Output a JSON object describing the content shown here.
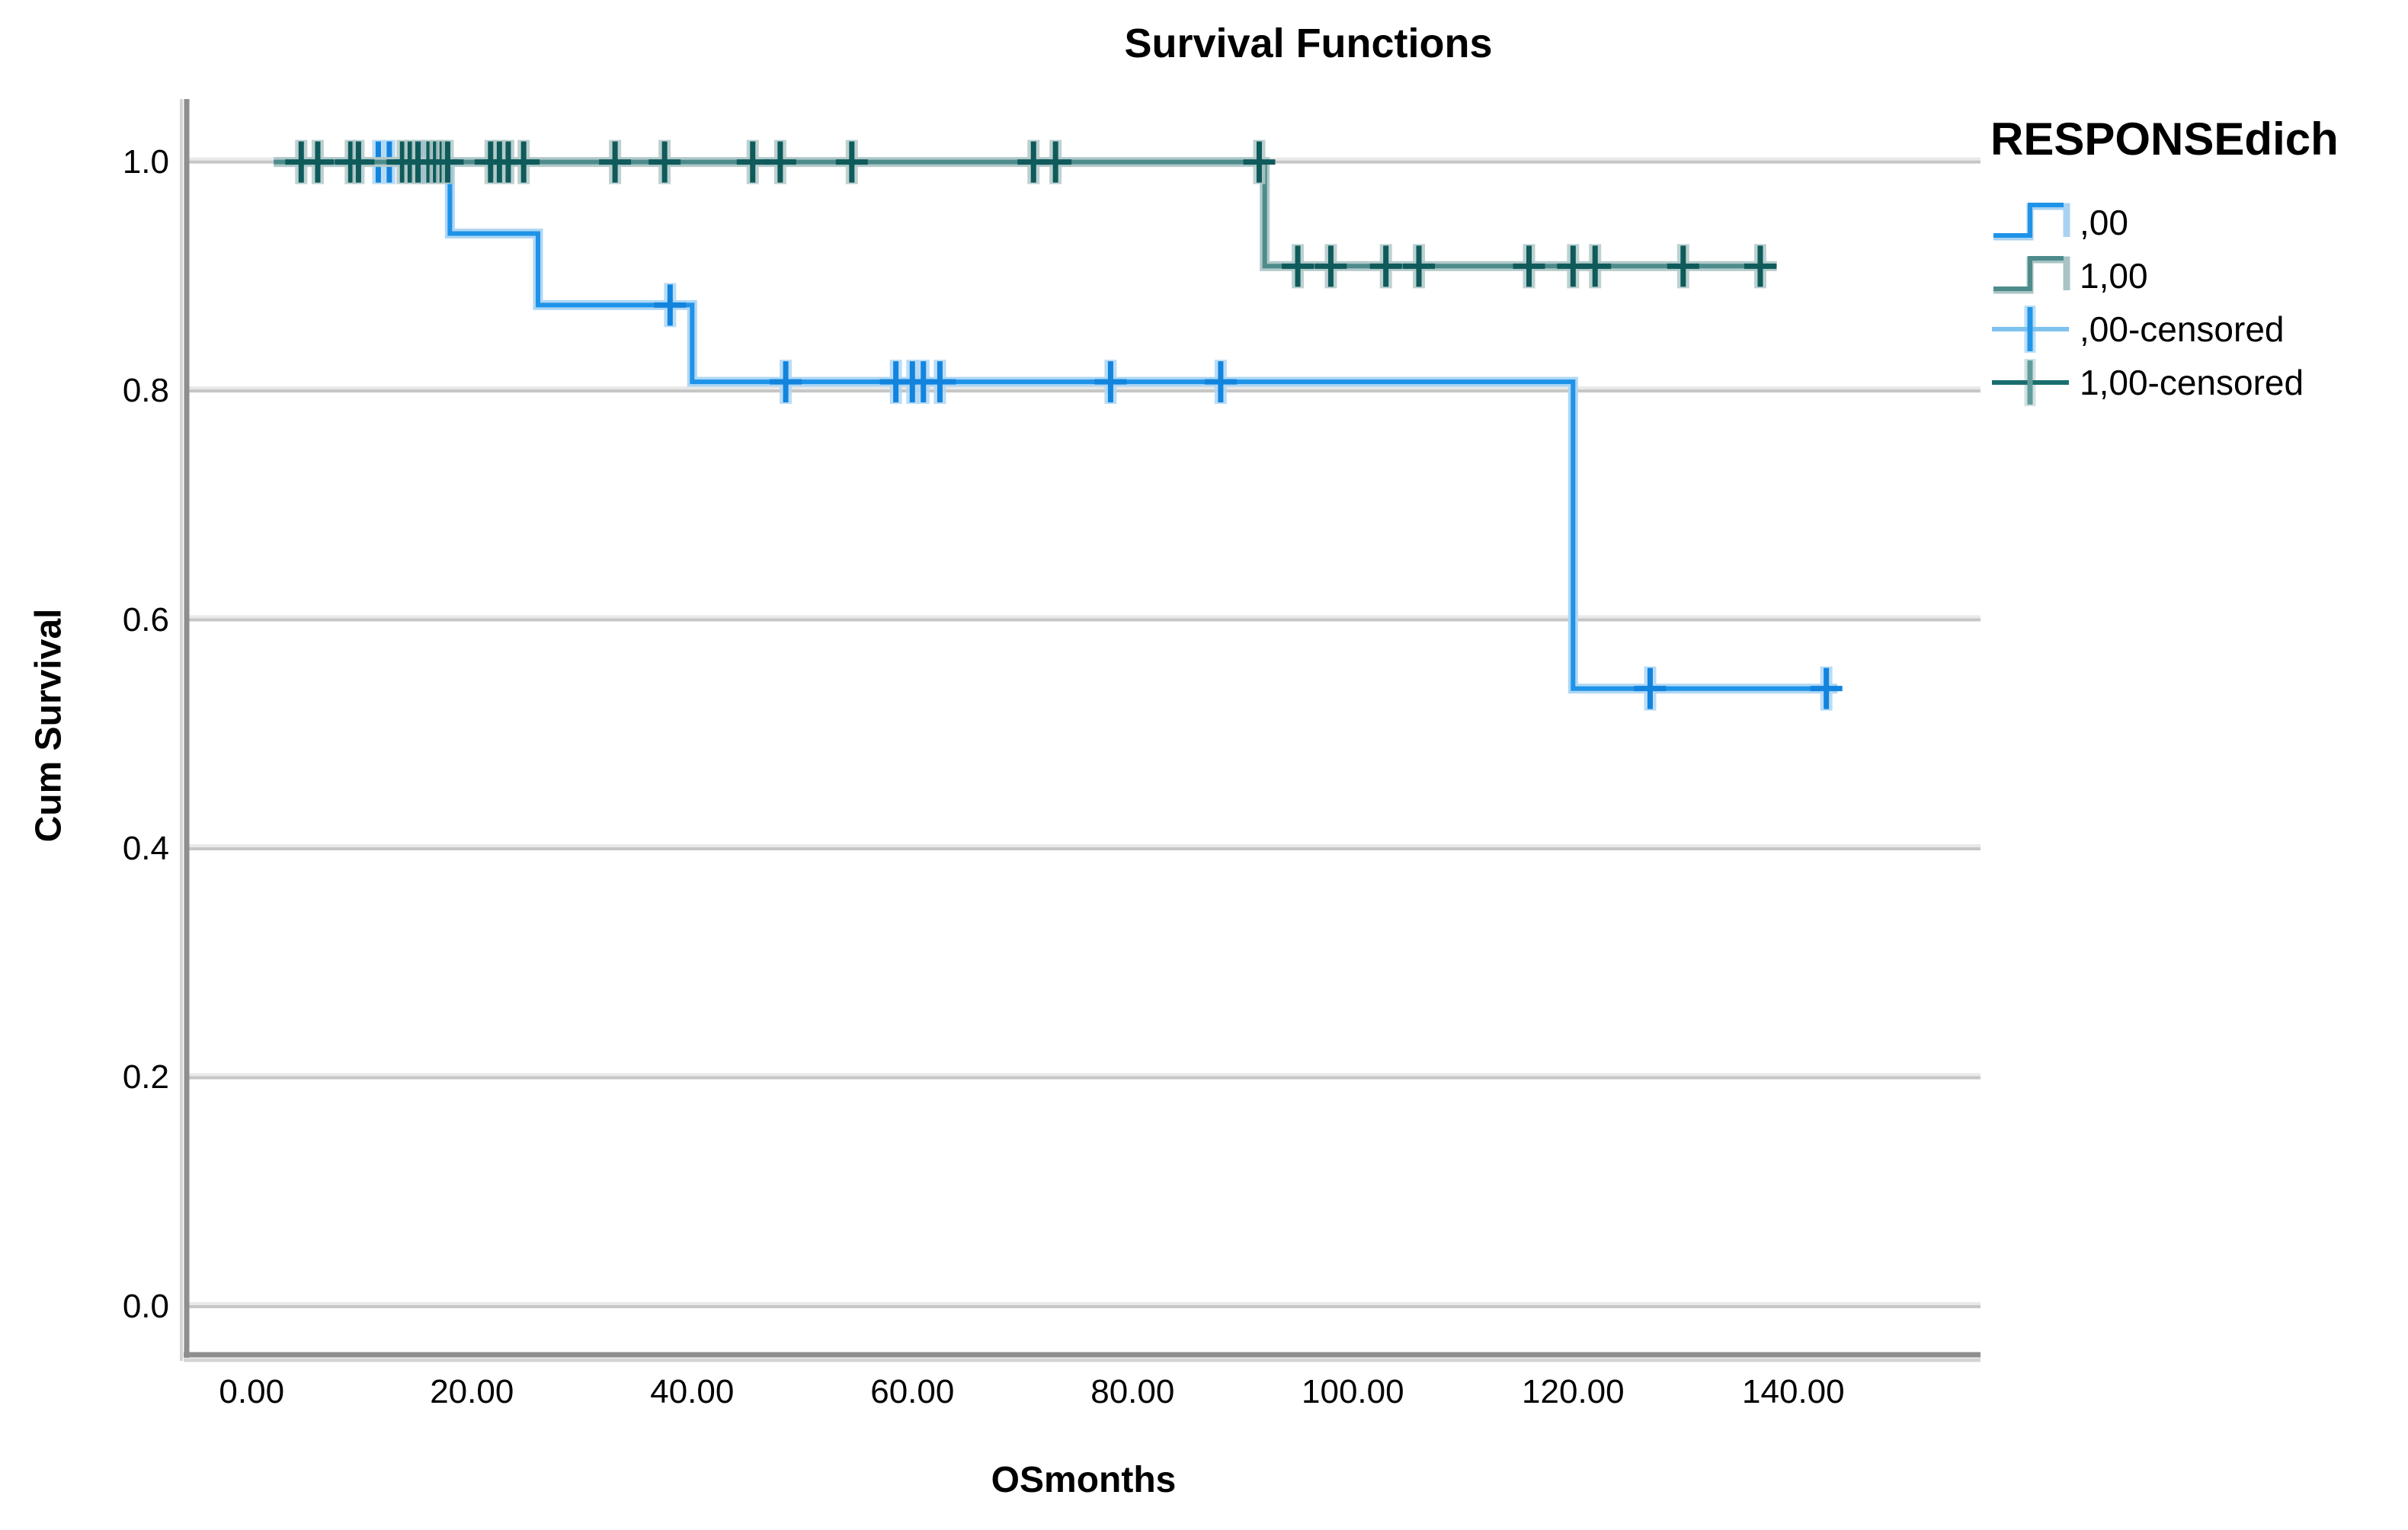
{
  "chart_data": {
    "type": "line",
    "chart_kind": "kaplan-meier-step",
    "title": "Survival Functions",
    "xlabel": "OSmonths",
    "ylabel": "Cum Survival",
    "x_range": [
      -5.9,
      157
    ],
    "y_range": [
      -0.042,
      1.055
    ],
    "grid": "horizontal",
    "x_ticks": {
      "values": [
        0,
        20,
        40,
        60,
        80,
        100,
        120,
        140
      ],
      "labels": [
        "0.00",
        "20.00",
        "40.00",
        "60.00",
        "80.00",
        "100.00",
        "120.00",
        "140.00"
      ]
    },
    "y_ticks": {
      "values": [
        0.0,
        0.2,
        0.4,
        0.6,
        0.8,
        1.0
      ],
      "labels": [
        "0.0",
        "0.2",
        "0.4",
        "0.6",
        "0.8",
        "1.0"
      ]
    },
    "series": [
      {
        "name": ".00",
        "color": "#1E93E8",
        "halo": "#AFD7F5",
        "censor_color": "#1284DE",
        "steps": [
          [
            2,
            1.0
          ],
          [
            18,
            1.0
          ],
          [
            18,
            0.9375
          ],
          [
            26,
            0.9375
          ],
          [
            26,
            0.875
          ],
          [
            40,
            0.875
          ],
          [
            40,
            0.808
          ],
          [
            120,
            0.808
          ],
          [
            120,
            0.54
          ],
          [
            144,
            0.54
          ]
        ],
        "censored": [
          [
            11.5,
            1.0
          ],
          [
            12.5,
            1.0
          ],
          [
            15.5,
            1.0
          ],
          [
            38,
            0.875
          ],
          [
            48.5,
            0.808
          ],
          [
            58.5,
            0.808
          ],
          [
            60,
            0.808
          ],
          [
            61,
            0.808
          ],
          [
            62.5,
            0.808
          ],
          [
            78,
            0.808
          ],
          [
            88,
            0.808
          ],
          [
            127,
            0.54
          ],
          [
            143,
            0.54
          ]
        ]
      },
      {
        "name": "1.00",
        "color": "#4E8C8C",
        "halo": "#B2C9C9",
        "censor_color": "#0F5A5A",
        "steps": [
          [
            2,
            1.0
          ],
          [
            92,
            1.0
          ],
          [
            92,
            0.909
          ],
          [
            138.5,
            0.909
          ]
        ],
        "censored": [
          [
            4.5,
            1.0
          ],
          [
            6,
            1.0
          ],
          [
            9,
            1.0
          ],
          [
            9.7,
            1.0
          ],
          [
            13.7,
            1.0
          ],
          [
            14.4,
            1.0
          ],
          [
            15.1,
            1.0
          ],
          [
            16.1,
            1.0
          ],
          [
            16.7,
            1.0
          ],
          [
            17.3,
            1.0
          ],
          [
            17.8,
            1.0
          ],
          [
            21.7,
            1.0
          ],
          [
            22.5,
            1.0
          ],
          [
            23.3,
            1.0
          ],
          [
            24.7,
            1.0
          ],
          [
            33,
            1.0
          ],
          [
            37.5,
            1.0
          ],
          [
            45.5,
            1.0
          ],
          [
            48,
            1.0
          ],
          [
            54.5,
            1.0
          ],
          [
            71,
            1.0
          ],
          [
            73,
            1.0
          ],
          [
            91.5,
            1.0
          ],
          [
            95,
            0.909
          ],
          [
            98,
            0.909
          ],
          [
            103,
            0.909
          ],
          [
            106,
            0.909
          ],
          [
            116,
            0.909
          ],
          [
            120,
            0.909
          ],
          [
            122,
            0.909
          ],
          [
            130,
            0.909
          ],
          [
            137,
            0.909
          ]
        ]
      }
    ],
    "legend": {
      "title": "RESPONSEdich",
      "position": "right",
      "entries": [
        {
          "label": ",00",
          "type": "step",
          "line": "#1E93E8",
          "tail": "#A9D2F2"
        },
        {
          "label": "1,00",
          "type": "step",
          "line": "#4E8C8C",
          "tail": "#A9C4C4"
        },
        {
          "label": ",00-censored",
          "type": "censor",
          "cross_h": "#7EC2EE",
          "cross_v": "#2196E8"
        },
        {
          "label": "1,00-censored",
          "type": "censor",
          "cross_h": "#1A6E6E",
          "cross_v": "#629D9D"
        }
      ]
    },
    "style_colors": {
      "gridline": "#C6C6C6",
      "gridline_light": "#E9E9E9",
      "spine": "#8E8E8E",
      "spine_shadow": "#D4D4D4",
      "text": "#000000"
    }
  }
}
